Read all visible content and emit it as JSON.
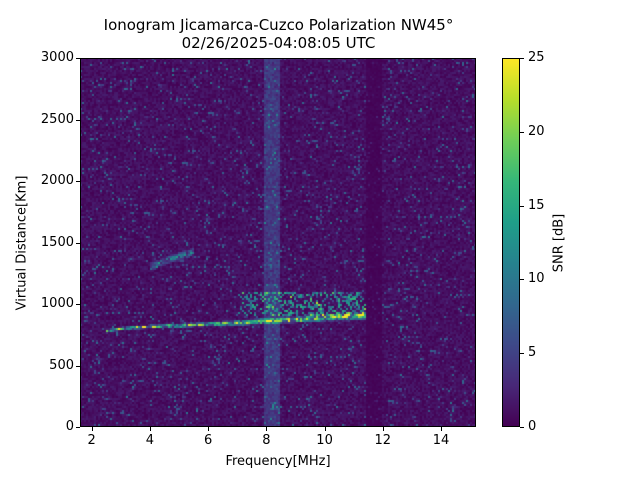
{
  "chart_data": {
    "type": "heatmap",
    "title": "Ionogram Jicamarca-Cuzco Polarization NW45°",
    "subtitle": "02/26/2025-04:08:05 UTC",
    "xlabel": "Frequency[MHz]",
    "ylabel": "Virtual Distance[Km]",
    "xlim": [
      1.6,
      15.2
    ],
    "ylim": [
      0,
      3000
    ],
    "x_ticks": [
      2,
      4,
      6,
      8,
      10,
      12,
      14
    ],
    "y_ticks": [
      0,
      500,
      1000,
      1500,
      2000,
      2500,
      3000
    ],
    "colorbar": {
      "label": "SNR [dB]",
      "range": [
        0,
        25
      ],
      "ticks": [
        0,
        5,
        10,
        15,
        20,
        25
      ],
      "colormap": "viridis"
    },
    "grid": false,
    "traces": [
      {
        "name": "main-echo-trace",
        "points": [
          [
            2.5,
            780
          ],
          [
            3.0,
            800
          ],
          [
            4.0,
            815
          ],
          [
            5.0,
            825
          ],
          [
            6.0,
            835
          ],
          [
            7.0,
            845
          ],
          [
            8.0,
            860
          ],
          [
            9.0,
            875
          ],
          [
            10.0,
            890
          ],
          [
            11.0,
            900
          ],
          [
            11.4,
            905
          ]
        ],
        "peak_snr_db": 25
      },
      {
        "name": "second-hop-trace",
        "points": [
          [
            4.0,
            1300
          ],
          [
            4.5,
            1350
          ],
          [
            5.0,
            1390
          ],
          [
            5.5,
            1420
          ]
        ],
        "peak_snr_db": 12
      },
      {
        "name": "spread-echoes",
        "freq_range": [
          7.0,
          11.4
        ],
        "distance_range": [
          900,
          1100
        ],
        "peak_snr_db": 15
      }
    ],
    "noise_features": [
      {
        "name": "interference-band",
        "freq_range": [
          7.9,
          8.5
        ],
        "snr_db": 4
      },
      {
        "name": "quiet-gap",
        "freq_range": [
          11.4,
          12.0
        ],
        "snr_db": 0
      }
    ],
    "background_snr_db": 1
  },
  "colors": {
    "viridis": [
      "#440154",
      "#482878",
      "#3e4989",
      "#31688e",
      "#26828e",
      "#1f9e89",
      "#35b779",
      "#6ece58",
      "#b5de2b",
      "#fde725"
    ]
  }
}
